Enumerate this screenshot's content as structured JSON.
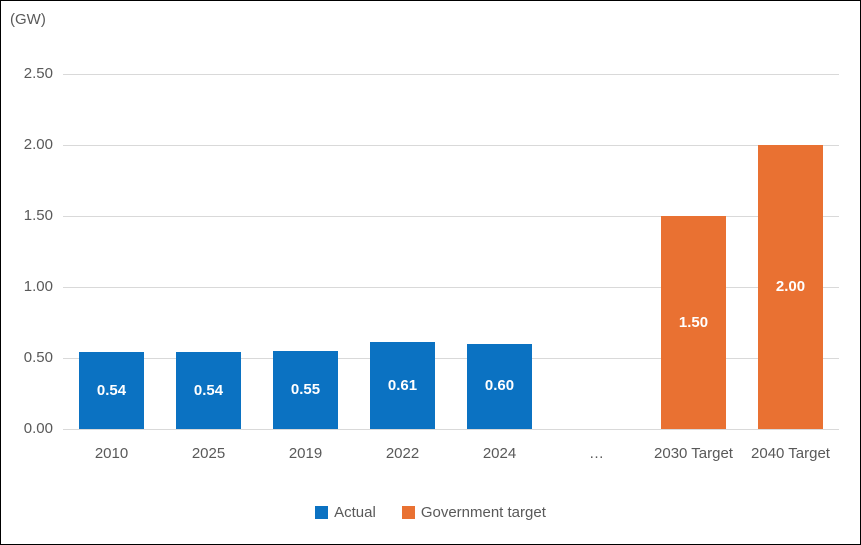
{
  "chart_data": {
    "type": "bar",
    "title": "",
    "unit_label": "(GW)",
    "xlabel": "",
    "ylabel": "(GW)",
    "categories": [
      "2010",
      "2025",
      "2019",
      "2022",
      "2024",
      "…",
      "2030 Target",
      "2040 Target"
    ],
    "series": [
      {
        "name": "Actual",
        "color": "#0b72c2",
        "values": [
          0.54,
          0.54,
          0.55,
          0.61,
          0.6,
          null,
          null,
          null
        ]
      },
      {
        "name": "Government target",
        "color": "#e97132",
        "values": [
          null,
          null,
          null,
          null,
          null,
          null,
          1.5,
          2.0
        ]
      }
    ],
    "yticks": [
      0.0,
      0.5,
      1.0,
      1.5,
      2.0,
      2.5
    ],
    "ylim": [
      0,
      2.5
    ],
    "grid": true,
    "gridline_color": "#d9d9d9",
    "text_color": "#595959",
    "data_label_color": "#ffffff",
    "legend_position": "bottom"
  }
}
